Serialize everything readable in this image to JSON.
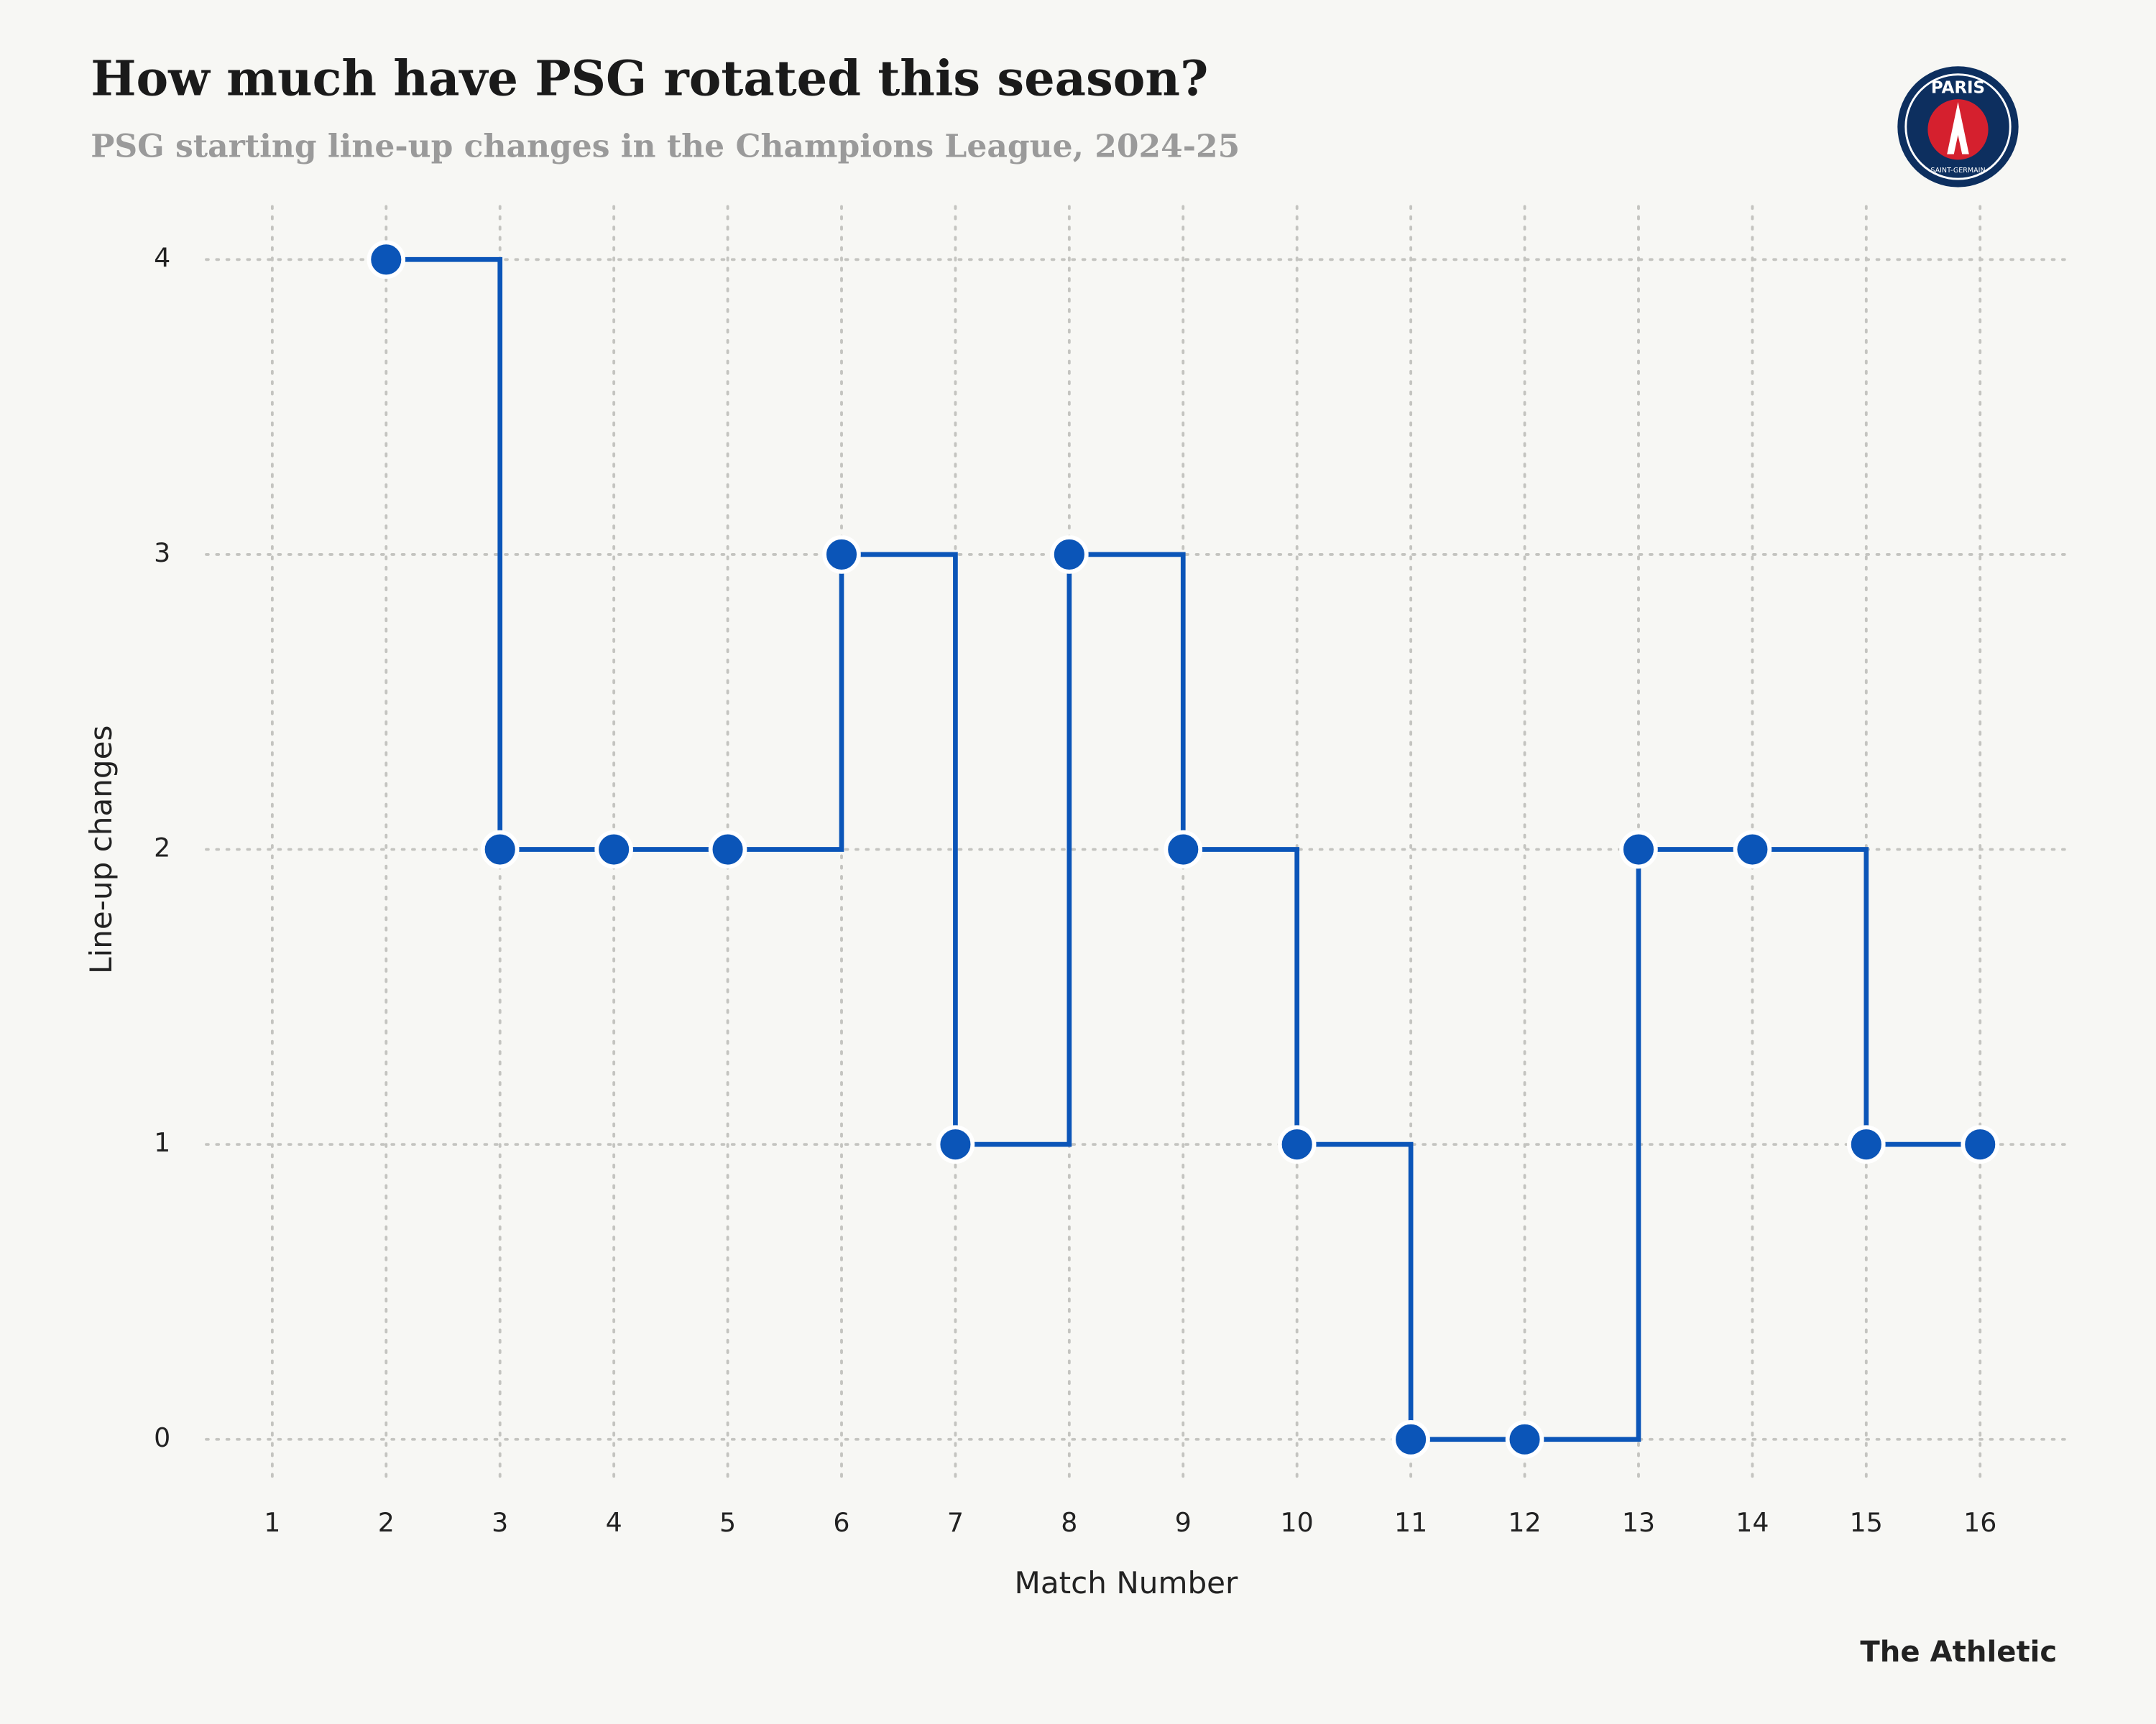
{
  "title": "How much have PSG rotated this season?",
  "subtitle": "PSG starting line-up changes in the Champions League, 2024-25",
  "logo": {
    "top": "PARIS",
    "bottom": "SAINT-GERMAIN"
  },
  "source": "The Athletic",
  "chart_data": {
    "type": "step",
    "x_label": "Match Number",
    "y_label": "Line-up changes",
    "x": [
      2,
      3,
      4,
      5,
      6,
      7,
      8,
      9,
      10,
      11,
      12,
      13,
      14,
      15,
      16
    ],
    "values": [
      4,
      2,
      2,
      2,
      3,
      1,
      3,
      2,
      1,
      0,
      0,
      2,
      2,
      1,
      1
    ],
    "color": "#0b55b8",
    "xlim": [
      0.42,
      16.76
    ],
    "ylim": [
      -0.13,
      4.18
    ],
    "xticks": [
      1,
      2,
      3,
      4,
      5,
      6,
      7,
      8,
      9,
      10,
      11,
      12,
      13,
      14,
      15,
      16
    ],
    "yticks": [
      0,
      1,
      2,
      3,
      4
    ],
    "grid": true
  }
}
